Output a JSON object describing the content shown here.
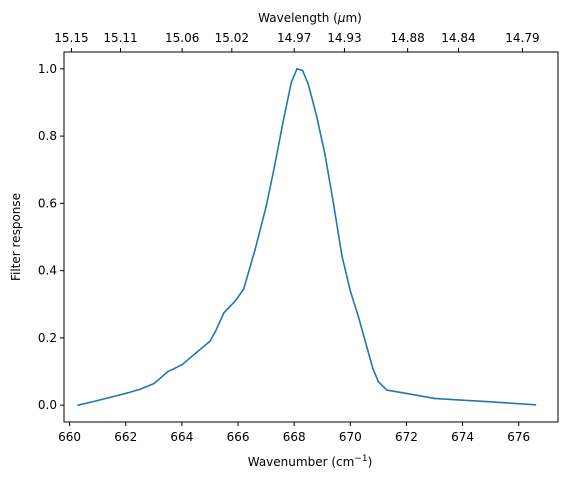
{
  "chart_data": {
    "type": "line",
    "xlabel": "Wavenumber (cm",
    "xlabel_sup": "−1",
    "xlabel_close": ")",
    "ylabel": "Filter response",
    "top_xlabel": "Wavelength (",
    "top_xlabel_mu": "μ",
    "top_xlabel_unit": "m)",
    "xlim": [
      659.8,
      677.4
    ],
    "ylim": [
      -0.05,
      1.05
    ],
    "x_ticks": [
      660,
      662,
      664,
      666,
      668,
      670,
      672,
      674,
      676
    ],
    "x_tick_labels": [
      "660",
      "662",
      "664",
      "666",
      "668",
      "670",
      "672",
      "674",
      "676"
    ],
    "y_ticks": [
      0.0,
      0.2,
      0.4,
      0.6,
      0.8,
      1.0
    ],
    "y_tick_labels": [
      "0.0",
      "0.2",
      "0.4",
      "0.6",
      "0.8",
      "1.0"
    ],
    "top_ticks": [
      15.15,
      15.11,
      15.06,
      15.02,
      14.97,
      14.93,
      14.88,
      14.84,
      14.79
    ],
    "top_tick_labels": [
      "15.15",
      "15.11",
      "15.06",
      "15.02",
      "14.97",
      "14.93",
      "14.88",
      "14.84",
      "14.79"
    ],
    "grid": false,
    "series": [
      {
        "color": "#1f77b4",
        "x": [
          660.3,
          661.0,
          662.0,
          662.5,
          663.0,
          663.2,
          663.5,
          664.0,
          664.5,
          665.0,
          665.2,
          665.5,
          665.9,
          666.2,
          666.6,
          667.0,
          667.3,
          667.6,
          667.9,
          668.1,
          668.3,
          668.5,
          668.8,
          669.1,
          669.4,
          669.7,
          670.0,
          670.3,
          670.6,
          670.8,
          671.0,
          671.3,
          672.0,
          673.0,
          674.0,
          675.0,
          676.6
        ],
        "y": [
          0.0,
          0.014,
          0.035,
          0.047,
          0.064,
          0.078,
          0.1,
          0.12,
          0.155,
          0.19,
          0.22,
          0.275,
          0.31,
          0.345,
          0.46,
          0.59,
          0.71,
          0.84,
          0.96,
          1.0,
          0.995,
          0.955,
          0.86,
          0.745,
          0.6,
          0.445,
          0.34,
          0.26,
          0.17,
          0.11,
          0.07,
          0.045,
          0.035,
          0.02,
          0.015,
          0.01,
          0.001
        ]
      }
    ]
  }
}
